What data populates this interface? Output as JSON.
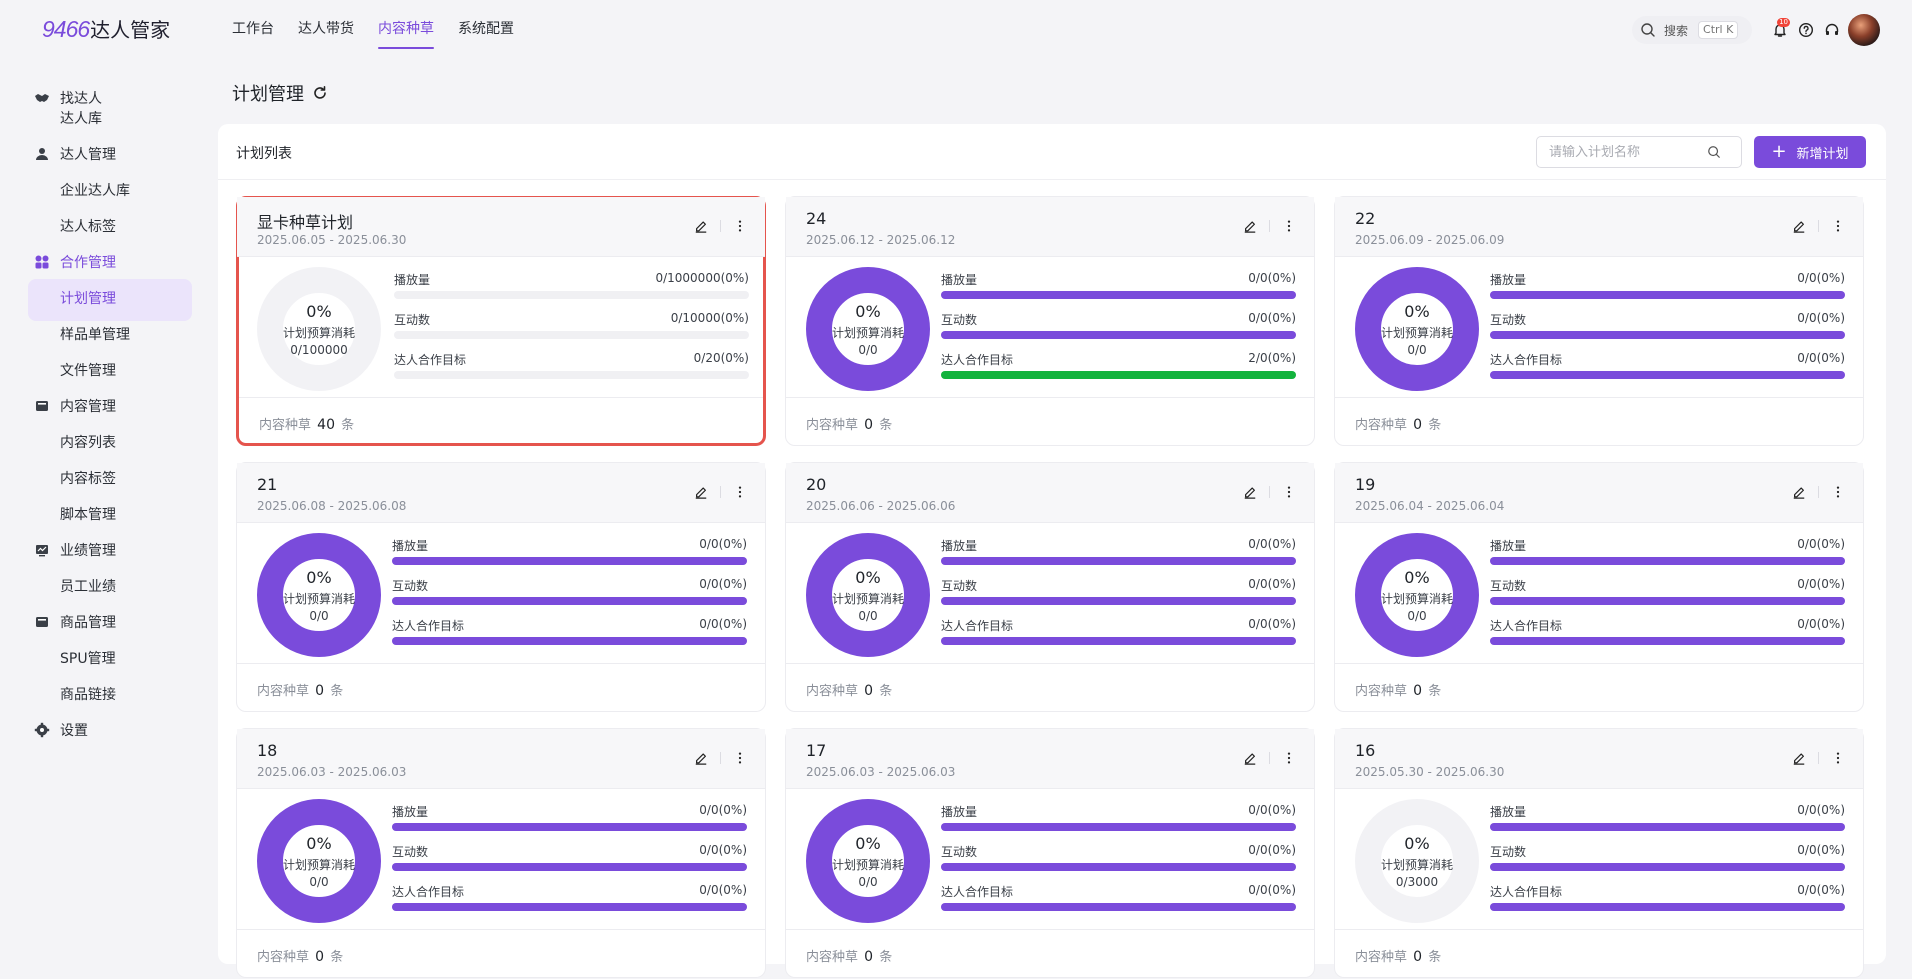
{
  "app": {
    "logo_num": "9466",
    "logo_text": "达人管家"
  },
  "topnav": [
    {
      "label": "工作台",
      "active": false
    },
    {
      "label": "达人带货",
      "active": false
    },
    {
      "label": "内容种草",
      "active": true
    },
    {
      "label": "系统配置",
      "active": false
    }
  ],
  "header": {
    "search_label": "搜索",
    "search_shortcut": "Ctrl K",
    "notification_count": "10"
  },
  "sidebar": {
    "groups": [
      {
        "label": "找达人",
        "icon": "handshake-icon",
        "items": [
          "达人库"
        ]
      },
      {
        "label": "达人管理",
        "icon": "user-icon",
        "items": [
          "企业达人库",
          "达人标签"
        ]
      },
      {
        "label": "合作管理",
        "icon": "apps-icon",
        "active": true,
        "items": [
          "计划管理",
          "样品单管理",
          "文件管理"
        ]
      },
      {
        "label": "内容管理",
        "icon": "folder-icon",
        "items": [
          "内容列表",
          "内容标签",
          "脚本管理"
        ]
      },
      {
        "label": "业绩管理",
        "icon": "chart-board-icon",
        "items": [
          "员工业绩"
        ]
      },
      {
        "label": "商品管理",
        "icon": "box-icon",
        "items": [
          "SPU管理",
          "商品链接"
        ]
      },
      {
        "label": "设置",
        "icon": "gear-icon",
        "items": []
      }
    ],
    "active_item": "计划管理"
  },
  "page": {
    "title": "计划管理"
  },
  "panel": {
    "title": "计划列表",
    "search_placeholder": "请输入计划名称",
    "add_button": "新增计划"
  },
  "metric_labels": {
    "plays": "播放量",
    "interactions": "互动数",
    "target": "达人合作目标"
  },
  "donut_label": "计划预算消耗",
  "footer_label": "内容种草",
  "footer_unit": "条",
  "colors": {
    "accent": "#7a4bdb",
    "success": "#12b33d",
    "track": "#f0f0f3",
    "selected_border": "#e5544d"
  },
  "plans": [
    {
      "name": "显卡种草计划",
      "date": "2025.06.05 - 2025.06.30",
      "budget_pct": "0%",
      "budget_val": "0/100000",
      "ring": "empty",
      "plays": "0/1000000(0%)",
      "plays_fill": 0,
      "interactions": "0/10000(0%)",
      "interactions_fill": 0,
      "target": "0/20(0%)",
      "target_fill": 0,
      "target_color": "accent",
      "content_count": "40",
      "selected": true
    },
    {
      "name": "24",
      "date": "2025.06.12 - 2025.06.12",
      "budget_pct": "0%",
      "budget_val": "0/0",
      "ring": "full",
      "plays": "0/0(0%)",
      "plays_fill": 1,
      "interactions": "0/0(0%)",
      "interactions_fill": 1,
      "target": "2/0(0%)",
      "target_fill": 1,
      "target_color": "success",
      "content_count": "0"
    },
    {
      "name": "22",
      "date": "2025.06.09 - 2025.06.09",
      "budget_pct": "0%",
      "budget_val": "0/0",
      "ring": "full",
      "plays": "0/0(0%)",
      "plays_fill": 1,
      "interactions": "0/0(0%)",
      "interactions_fill": 1,
      "target": "0/0(0%)",
      "target_fill": 1,
      "target_color": "accent",
      "content_count": "0"
    },
    {
      "name": "21",
      "date": "2025.06.08 - 2025.06.08",
      "budget_pct": "0%",
      "budget_val": "0/0",
      "ring": "full",
      "plays": "0/0(0%)",
      "plays_fill": 1,
      "interactions": "0/0(0%)",
      "interactions_fill": 1,
      "target": "0/0(0%)",
      "target_fill": 1,
      "target_color": "accent",
      "content_count": "0"
    },
    {
      "name": "20",
      "date": "2025.06.06 - 2025.06.06",
      "budget_pct": "0%",
      "budget_val": "0/0",
      "ring": "full",
      "plays": "0/0(0%)",
      "plays_fill": 1,
      "interactions": "0/0(0%)",
      "interactions_fill": 1,
      "target": "0/0(0%)",
      "target_fill": 1,
      "target_color": "accent",
      "content_count": "0"
    },
    {
      "name": "19",
      "date": "2025.06.04 - 2025.06.04",
      "budget_pct": "0%",
      "budget_val": "0/0",
      "ring": "full",
      "plays": "0/0(0%)",
      "plays_fill": 1,
      "interactions": "0/0(0%)",
      "interactions_fill": 1,
      "target": "0/0(0%)",
      "target_fill": 1,
      "target_color": "accent",
      "content_count": "0"
    },
    {
      "name": "18",
      "date": "2025.06.03 - 2025.06.03",
      "budget_pct": "0%",
      "budget_val": "0/0",
      "ring": "full",
      "plays": "0/0(0%)",
      "plays_fill": 1,
      "interactions": "0/0(0%)",
      "interactions_fill": 1,
      "target": "0/0(0%)",
      "target_fill": 1,
      "target_color": "accent",
      "content_count": "0"
    },
    {
      "name": "17",
      "date": "2025.06.03 - 2025.06.03",
      "budget_pct": "0%",
      "budget_val": "0/0",
      "ring": "full",
      "plays": "0/0(0%)",
      "plays_fill": 1,
      "interactions": "0/0(0%)",
      "interactions_fill": 1,
      "target": "0/0(0%)",
      "target_fill": 1,
      "target_color": "accent",
      "content_count": "0"
    },
    {
      "name": "16",
      "date": "2025.05.30 - 2025.06.30",
      "budget_pct": "0%",
      "budget_val": "0/3000",
      "ring": "empty",
      "plays": "0/0(0%)",
      "plays_fill": 1,
      "interactions": "0/0(0%)",
      "interactions_fill": 1,
      "target": "0/0(0%)",
      "target_fill": 1,
      "target_color": "accent",
      "content_count": "0"
    }
  ]
}
